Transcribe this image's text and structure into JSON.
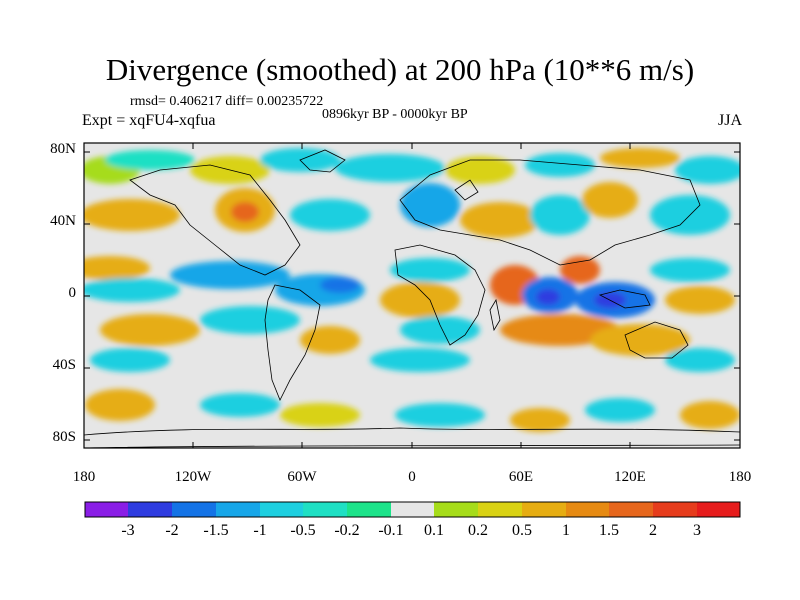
{
  "title": "Divergence (smoothed) at 200 hPa (10**6 m/s)",
  "stats": "rmsd= 0.406217 diff= 0.00235722",
  "period": "0896kyr BP - 0000kyr BP",
  "experiment": "Expt = xqFU4-xqfua",
  "season": "JJA",
  "lat_labels": [
    "80N",
    "40N",
    "0",
    "40S",
    "80S"
  ],
  "lon_labels": [
    "180",
    "120W",
    "60W",
    "0",
    "60E",
    "120E",
    "180"
  ],
  "colorbar": {
    "labels": [
      "-3",
      "-2",
      "-1.5",
      "-1",
      "-0.5",
      "-0.2",
      "-0.1",
      "0.1",
      "0.2",
      "0.5",
      "1",
      "1.5",
      "2",
      "3"
    ],
    "colors": [
      "#8a1ee6",
      "#2f3ce0",
      "#1473e6",
      "#17a6e8",
      "#1ecfe0",
      "#1fe0c4",
      "#1de38a",
      "#e6e6e6",
      "#a6dc1a",
      "#d9d214",
      "#e6ad12",
      "#e68a12",
      "#e6661c",
      "#e63c1c",
      "#e61c1c"
    ]
  }
}
